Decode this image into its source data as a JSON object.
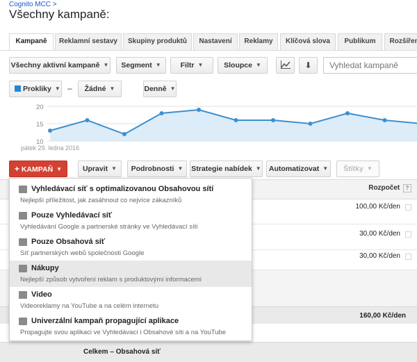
{
  "breadcrumb": "Cognito MCC >",
  "page_title": "Všechny kampaně:",
  "tabs": [
    "Kampaně",
    "Reklamní sestavy",
    "Skupiny produktů",
    "Nastavení",
    "Reklamy",
    "Klíčová slova",
    "Publikum",
    "Rozšíření"
  ],
  "toolbar": {
    "filter_all": "Všechny aktivní kampaně",
    "segment": "Segment",
    "filter": "Filtr",
    "columns": "Sloupce",
    "search_placeholder": "Vyhledat kampaně"
  },
  "chart_controls": {
    "metric1": "Prokliky",
    "dash": "–",
    "metric2": "Žádné",
    "period": "Denně"
  },
  "chart_data": {
    "type": "area",
    "y_ticks": [
      "20",
      "15",
      "10"
    ],
    "ylim": [
      10,
      20
    ],
    "values": [
      13,
      16,
      12,
      18,
      19,
      16,
      16,
      15,
      18,
      16,
      15
    ],
    "x_start_label": "pátek 29. ledna 2016",
    "color": "#3d8fce",
    "fill": "#dcecf8"
  },
  "action_bar": {
    "campaign": "KAMPAŇ",
    "edit": "Upravit",
    "details": "Podrobnosti",
    "bid_strategy": "Strategie nabídek",
    "automate": "Automatizovat",
    "labels": "Štítky"
  },
  "dropdown": [
    {
      "title": "Vyhledávací síť s optimalizovanou Obsahovou sítí",
      "desc": "Nejlepší příležitost, jak zasáhnout co nejvíce zákazníků"
    },
    {
      "title": "Pouze Vyhledávací síť",
      "desc": "Vyhledávání Google a partnerské stránky ve Vyhledávací síti"
    },
    {
      "title": "Pouze Obsahová síť",
      "desc": "Síť partnerských webů společnosti Google"
    },
    {
      "title": "Nákupy",
      "desc": "Nejlepší způsob vytvoření reklam s produktovými informacemi"
    },
    {
      "title": "Video",
      "desc": "Videoreklamy na YouTube a na celém internetu"
    },
    {
      "title": "Univerzální kampaň propagující aplikace",
      "desc": "Propagujte svou aplikaci ve Vyhledávací i Obsahové síti a na YouTube"
    }
  ],
  "table": {
    "budget_header": "Rozpočet",
    "help": "?",
    "budgets": [
      "100,00 Kč/den",
      "30,00 Kč/den",
      "30,00 Kč/den"
    ],
    "total_budget": "160,00 Kč/den",
    "total_display": "Celkem – Obsahová síť"
  },
  "colors": {
    "accent_red": "#d44132",
    "link_blue": "#1a55c8",
    "metric_swatch": "#1e88d6"
  }
}
